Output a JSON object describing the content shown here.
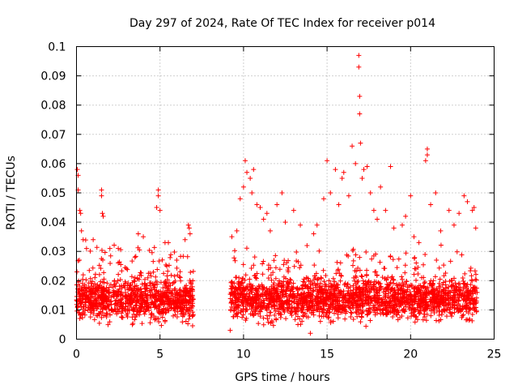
{
  "chart_data": {
    "type": "scatter",
    "title": "Day 297 of 2024, Rate Of TEC Index for receiver p014",
    "xlabel": "GPS time / hours",
    "ylabel": "ROTI / TECUs",
    "xlim": [
      0,
      25
    ],
    "ylim": [
      0,
      0.1
    ],
    "xticks": [
      "0",
      "5",
      "10",
      "15",
      "20",
      "25"
    ],
    "yticks": [
      "0",
      "0.01",
      "0.02",
      "0.03",
      "0.04",
      "0.05",
      "0.06",
      "0.07",
      "0.08",
      "0.09",
      "0.1"
    ],
    "grid": true,
    "marker": "+",
    "color": "#ff0000",
    "data_gap_hours": [
      7.0,
      9.2
    ],
    "series": [
      {
        "name": "ROTI",
        "points": [
          [
            0.05,
            0.058
          ],
          [
            0.1,
            0.056
          ],
          [
            0.1,
            0.051
          ],
          [
            0.2,
            0.044
          ],
          [
            0.25,
            0.043
          ],
          [
            0.3,
            0.037
          ],
          [
            0.4,
            0.034
          ],
          [
            0.6,
            0.031
          ],
          [
            1.0,
            0.034
          ],
          [
            1.5,
            0.051
          ],
          [
            1.5,
            0.049
          ],
          [
            1.55,
            0.043
          ],
          [
            1.6,
            0.042
          ],
          [
            2.0,
            0.031
          ],
          [
            2.5,
            0.031
          ],
          [
            3.5,
            0.028
          ],
          [
            3.7,
            0.036
          ],
          [
            4.0,
            0.035
          ],
          [
            4.8,
            0.045
          ],
          [
            4.9,
            0.051
          ],
          [
            4.9,
            0.049
          ],
          [
            5.0,
            0.044
          ],
          [
            5.3,
            0.033
          ],
          [
            5.5,
            0.033
          ],
          [
            6.0,
            0.027
          ],
          [
            6.5,
            0.034
          ],
          [
            6.7,
            0.039
          ],
          [
            6.75,
            0.038
          ],
          [
            6.8,
            0.036
          ],
          [
            9.2,
            0.003
          ],
          [
            9.3,
            0.035
          ],
          [
            9.6,
            0.037
          ],
          [
            9.8,
            0.048
          ],
          [
            10.0,
            0.052
          ],
          [
            10.1,
            0.061
          ],
          [
            10.2,
            0.057
          ],
          [
            10.4,
            0.055
          ],
          [
            10.5,
            0.05
          ],
          [
            10.6,
            0.058
          ],
          [
            10.8,
            0.046
          ],
          [
            11.0,
            0.045
          ],
          [
            11.2,
            0.041
          ],
          [
            11.4,
            0.043
          ],
          [
            11.6,
            0.037
          ],
          [
            12.0,
            0.046
          ],
          [
            12.3,
            0.05
          ],
          [
            12.5,
            0.04
          ],
          [
            13.0,
            0.044
          ],
          [
            13.4,
            0.039
          ],
          [
            13.8,
            0.032
          ],
          [
            14.0,
            0.002
          ],
          [
            14.2,
            0.036
          ],
          [
            14.4,
            0.039
          ],
          [
            14.8,
            0.048
          ],
          [
            15.0,
            0.061
          ],
          [
            15.2,
            0.05
          ],
          [
            15.5,
            0.058
          ],
          [
            15.7,
            0.046
          ],
          [
            15.9,
            0.055
          ],
          [
            16.0,
            0.057
          ],
          [
            16.3,
            0.049
          ],
          [
            16.5,
            0.066
          ],
          [
            16.7,
            0.06
          ],
          [
            16.9,
            0.097
          ],
          [
            16.9,
            0.093
          ],
          [
            16.95,
            0.083
          ],
          [
            16.95,
            0.077
          ],
          [
            17.0,
            0.067
          ],
          [
            17.1,
            0.055
          ],
          [
            17.2,
            0.058
          ],
          [
            17.4,
            0.059
          ],
          [
            17.6,
            0.05
          ],
          [
            17.8,
            0.044
          ],
          [
            18.0,
            0.041
          ],
          [
            18.2,
            0.052
          ],
          [
            18.5,
            0.044
          ],
          [
            18.8,
            0.059
          ],
          [
            19.0,
            0.038
          ],
          [
            19.5,
            0.039
          ],
          [
            19.7,
            0.042
          ],
          [
            20.0,
            0.049
          ],
          [
            20.2,
            0.035
          ],
          [
            20.5,
            0.033
          ],
          [
            20.9,
            0.061
          ],
          [
            21.0,
            0.065
          ],
          [
            21.0,
            0.063
          ],
          [
            21.2,
            0.046
          ],
          [
            21.5,
            0.05
          ],
          [
            21.8,
            0.037
          ],
          [
            22.3,
            0.044
          ],
          [
            22.6,
            0.039
          ],
          [
            22.9,
            0.043
          ],
          [
            23.2,
            0.049
          ],
          [
            23.4,
            0.047
          ],
          [
            23.7,
            0.044
          ],
          [
            23.8,
            0.045
          ],
          [
            23.9,
            0.038
          ]
        ]
      }
    ]
  }
}
